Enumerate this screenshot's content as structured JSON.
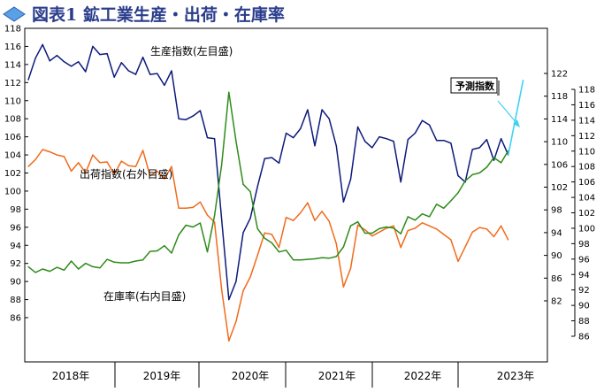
{
  "title": "図表1 鉱工業生産・出荷・在庫率",
  "chart_data": {
    "type": "line",
    "x_labels": [
      "2018年",
      "2019年",
      "2020年",
      "2021年",
      "2022年",
      "2023年"
    ],
    "y_left": {
      "min": 86,
      "max": 118,
      "ticks": [
        86,
        88,
        90,
        92,
        94,
        96,
        98,
        100,
        102,
        104,
        106,
        108,
        110,
        112,
        114,
        116,
        118
      ]
    },
    "y_right_inner": {
      "min": 82,
      "max": 122,
      "ticks": [
        82,
        86,
        90,
        94,
        98,
        102,
        106,
        110,
        114,
        118,
        122
      ]
    },
    "y_right_outer": {
      "min": 86,
      "max": 118,
      "ticks": [
        86,
        88,
        90,
        92,
        94,
        96,
        98,
        100,
        102,
        104,
        106,
        108,
        110,
        112,
        114,
        116,
        118
      ]
    },
    "series": [
      {
        "name": "生産指数(左目盛)",
        "axis": "left",
        "color": "#0d1a7a",
        "values": [
          112.3,
          114.7,
          116.2,
          114.4,
          115.0,
          114.3,
          113.8,
          114.3,
          113.2,
          116.0,
          115.1,
          115.2,
          112.6,
          114.2,
          113.3,
          112.9,
          114.8,
          112.9,
          113.0,
          111.7,
          113.3,
          108.0,
          107.9,
          108.3,
          108.9,
          105.9,
          105.8,
          96.8,
          88.0,
          90.0,
          95.4,
          97.0,
          100.5,
          103.6,
          103.7,
          103.1,
          106.4,
          105.9,
          106.9,
          109.0,
          105.0,
          109.0,
          108.0,
          105.0,
          98.8,
          101.3,
          107.1,
          105.5,
          104.8,
          106.0,
          105.8,
          105.5,
          101.0,
          105.7,
          106.4,
          107.8,
          107.3,
          105.6,
          105.6,
          105.3,
          101.7,
          101.0,
          104.6,
          104.8,
          105.7,
          103.4,
          105.8,
          104.0
        ]
      },
      {
        "name": "出荷指数(右外目盛)",
        "axis": "right_outer",
        "color": "#f06b1c",
        "values": [
          108.0,
          108.9,
          110.2,
          109.9,
          109.5,
          109.3,
          107.4,
          108.5,
          107.2,
          109.5,
          108.5,
          108.6,
          107.0,
          108.7,
          108.1,
          108.0,
          110.1,
          106.8,
          107.4,
          106.4,
          108.0,
          102.6,
          102.6,
          102.7,
          103.4,
          101.7,
          100.8,
          92.0,
          85.4,
          87.9,
          91.9,
          93.7,
          96.5,
          99.4,
          99.2,
          97.5,
          101.4,
          101.0,
          102.0,
          103.3,
          101.0,
          102.2,
          100.9,
          98.0,
          92.4,
          94.8,
          100.4,
          99.8,
          99.0,
          99.5,
          100.0,
          100.3,
          97.5,
          99.7,
          100.0,
          100.7,
          100.3,
          99.9,
          99.2,
          98.5,
          95.7,
          97.6,
          99.5,
          100.1,
          99.9,
          98.9,
          100.3,
          98.5
        ]
      },
      {
        "name": "在庫率(右内目盛)",
        "axis": "right_inner",
        "color": "#2e8b1a",
        "values": [
          88.0,
          87.0,
          87.6,
          87.2,
          87.9,
          87.4,
          89.0,
          87.6,
          88.6,
          88.0,
          87.8,
          89.3,
          88.8,
          88.7,
          88.7,
          89.0,
          89.2,
          90.7,
          90.8,
          91.7,
          90.4,
          93.6,
          95.3,
          95.0,
          95.7,
          90.6,
          97.0,
          106.0,
          118.7,
          110.1,
          102.5,
          101.2,
          94.7,
          93.0,
          92.2,
          90.6,
          90.9,
          89.2,
          89.2,
          89.3,
          89.4,
          89.6,
          89.5,
          89.8,
          91.5,
          95.2,
          95.9,
          93.9,
          93.9,
          94.7,
          95.0,
          94.8,
          93.8,
          96.8,
          96.2,
          97.3,
          96.8,
          99.0,
          98.3,
          99.6,
          101.0,
          103.1,
          104.2,
          104.5,
          105.5,
          107.2,
          106.3,
          108.4
        ]
      }
    ],
    "forecast": {
      "name": "予測指数",
      "axis": "left",
      "color": "#3fd2f0",
      "values": [
        104.0,
        112.3
      ]
    },
    "labels": {
      "production": "生産指数(左目盛)",
      "shipments": "出荷指数(右外目盛)",
      "inventory": "在庫率(右内目盛)",
      "forecast": "予測指数"
    },
    "grid": false,
    "legend": "inline"
  }
}
